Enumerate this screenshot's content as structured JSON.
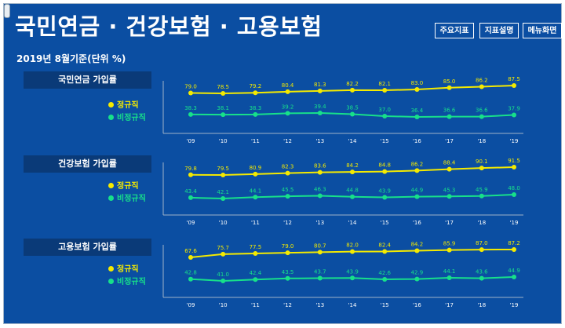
{
  "header": {
    "title": "국민연금 · 건강보험 · 고용보험",
    "subtitle": "2019년 8월기준(단위 %)",
    "buttons": [
      "주요지표",
      "지표설명",
      "메뉴화면"
    ]
  },
  "colors": {
    "background": "#0b4ea2",
    "panel": "#0a3a78",
    "regular": "#f4ea00",
    "nonregular": "#17e08a",
    "axis": "#9fb3c8"
  },
  "chart_data": [
    {
      "type": "line",
      "title": "국민연금 가입률",
      "categories": [
        "'09",
        "'10",
        "'11",
        "'12",
        "'13",
        "'14",
        "'15",
        "'16",
        "'17",
        "'18",
        "'19"
      ],
      "series": [
        {
          "name": "정규직",
          "values": [
            79.0,
            78.5,
            79.2,
            80.4,
            81.3,
            82.2,
            82.1,
            83.0,
            85.0,
            86.2,
            87.5
          ]
        },
        {
          "name": "비정규직",
          "values": [
            38.3,
            38.1,
            38.3,
            39.2,
            39.4,
            38.5,
            37.0,
            36.4,
            36.6,
            36.6,
            37.9
          ]
        }
      ]
    },
    {
      "type": "line",
      "title": "건강보험 가입률",
      "categories": [
        "'09",
        "'10",
        "'11",
        "'12",
        "'13",
        "'14",
        "'15",
        "'16",
        "'17",
        "'18",
        "'19"
      ],
      "series": [
        {
          "name": "정규직",
          "values": [
            79.8,
            79.5,
            80.9,
            82.3,
            83.6,
            84.2,
            84.8,
            86.2,
            88.4,
            90.1,
            91.5
          ]
        },
        {
          "name": "비정규직",
          "values": [
            43.4,
            42.1,
            44.1,
            45.5,
            46.3,
            44.8,
            43.9,
            44.9,
            45.3,
            45.9,
            48.0
          ]
        }
      ]
    },
    {
      "type": "line",
      "title": "고용보험 가입률",
      "categories": [
        "'09",
        "'10",
        "'11",
        "'12",
        "'13",
        "'14",
        "'15",
        "'16",
        "'17",
        "'18",
        "'19"
      ],
      "series": [
        {
          "name": "정규직",
          "values": [
            67.6,
            75.7,
            77.5,
            79.0,
            80.7,
            82.0,
            82.4,
            84.2,
            85.9,
            87.0,
            87.2
          ]
        },
        {
          "name": "비정규직",
          "values": [
            42.8,
            41.0,
            42.4,
            43.5,
            43.7,
            43.9,
            42.6,
            42.9,
            44.1,
            43.6,
            44.9
          ]
        }
      ]
    }
  ]
}
